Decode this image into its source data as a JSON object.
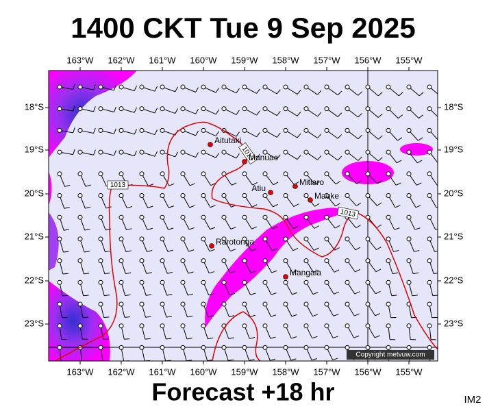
{
  "header": {
    "title": "1400 CKT Tue 9 Sep 2025"
  },
  "map": {
    "lon_labels": [
      "163°W",
      "162°W",
      "161°W",
      "160°W",
      "159°W",
      "158°W",
      "157°W",
      "156°W",
      "155°W"
    ],
    "lat_labels": [
      "18°S",
      "19°S",
      "20°S",
      "21°S",
      "22°S",
      "23°S"
    ],
    "places": [
      "Aitutaki",
      "Manuae",
      "Atiu",
      "Mitiaro",
      "Mauke",
      "Rarotonga",
      "Mangaia"
    ],
    "isobar_labels": [
      "1013",
      "1013",
      "1013"
    ],
    "copyright": "Copyright metvuw.com"
  },
  "footer": {
    "forecast": "Forecast +18 hr",
    "code": "IM2"
  }
}
